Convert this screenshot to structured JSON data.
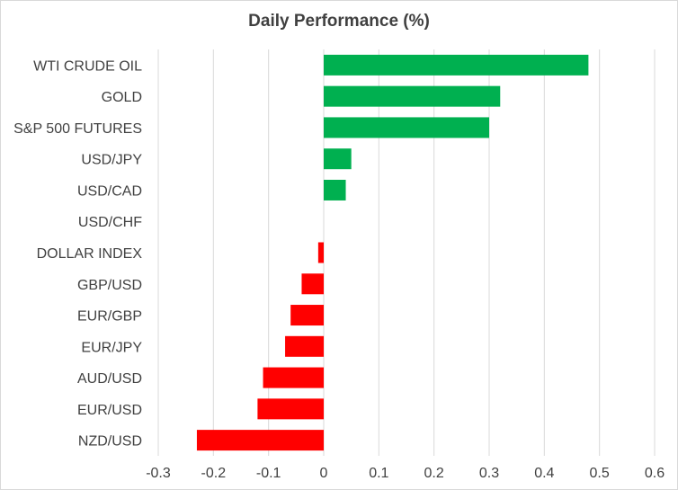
{
  "chart_data": {
    "type": "bar",
    "orientation": "horizontal",
    "title": "Daily Performance (%)",
    "xlabel": "",
    "ylabel": "",
    "xlim": [
      -0.3,
      0.6
    ],
    "grid": true,
    "x_ticks": [
      "-0.3",
      "-0.2",
      "-0.1",
      "0",
      "0.1",
      "0.2",
      "0.3",
      "0.4",
      "0.5",
      "0.6"
    ],
    "categories": [
      "WTI CRUDE OIL",
      "GOLD",
      "S&P 500 FUTURES",
      "USD/JPY",
      "USD/CAD",
      "USD/CHF",
      "DOLLAR INDEX",
      "GBP/USD",
      "EUR/GBP",
      "EUR/JPY",
      "AUD/USD",
      "EUR/USD",
      "NZD/USD"
    ],
    "values": [
      0.48,
      0.32,
      0.3,
      0.05,
      0.04,
      0.0,
      -0.01,
      -0.04,
      -0.06,
      -0.07,
      -0.11,
      -0.12,
      -0.23
    ],
    "colors": {
      "positive": "#00b050",
      "negative": "#ff0000",
      "grid": "#d9d9d9",
      "text": "#404040"
    }
  }
}
